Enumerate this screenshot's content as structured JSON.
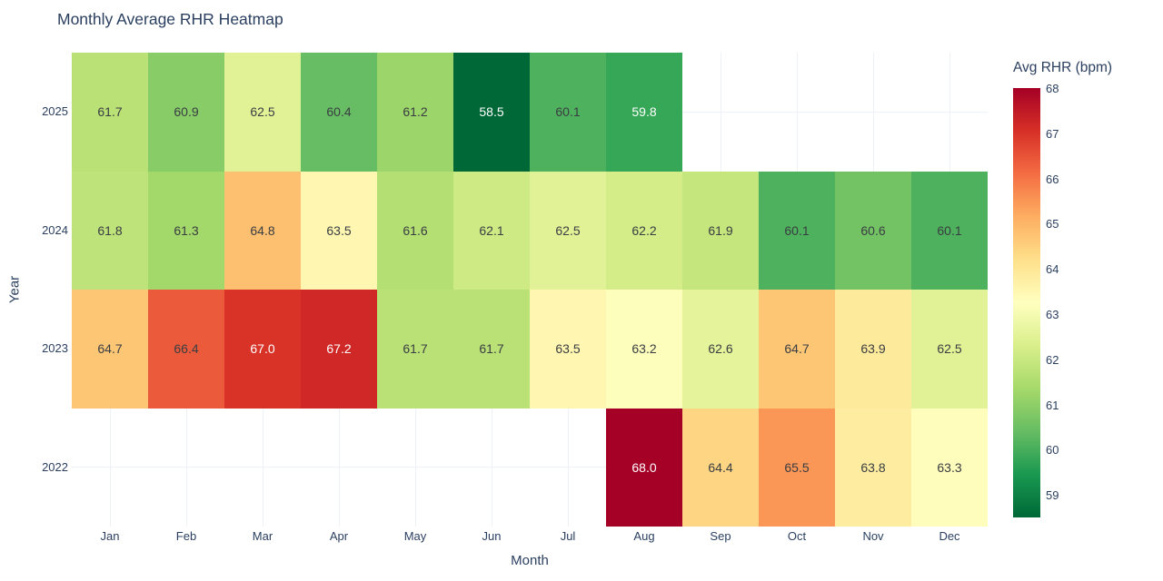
{
  "figure": {
    "title": "Monthly Average RHR Heatmap"
  },
  "chart_data": {
    "type": "heatmap",
    "title": "Monthly Average RHR Heatmap",
    "xlabel": "Month",
    "ylabel": "Year",
    "x_categories": [
      "Jan",
      "Feb",
      "Mar",
      "Apr",
      "May",
      "Jun",
      "Jul",
      "Aug",
      "Sep",
      "Oct",
      "Nov",
      "Dec"
    ],
    "y_categories": [
      "2025",
      "2024",
      "2023",
      "2022"
    ],
    "z": [
      [
        61.7,
        60.9,
        62.5,
        60.4,
        61.2,
        58.5,
        60.1,
        59.8,
        null,
        null,
        null,
        null
      ],
      [
        61.8,
        61.3,
        64.8,
        63.5,
        61.6,
        62.1,
        62.5,
        62.2,
        61.9,
        60.1,
        60.6,
        60.1
      ],
      [
        64.7,
        66.4,
        67.0,
        67.2,
        61.7,
        61.7,
        63.5,
        63.2,
        62.6,
        64.7,
        63.9,
        62.5
      ],
      [
        null,
        null,
        null,
        null,
        null,
        null,
        null,
        68.0,
        64.4,
        65.5,
        63.8,
        63.3
      ]
    ],
    "zmin": 58.5,
    "zmax": 68,
    "value_decimals": 1,
    "grid": true,
    "colorbar": {
      "title": "Avg RHR (bpm)",
      "ticks": [
        68,
        67,
        66,
        65,
        64,
        63,
        62,
        61,
        60,
        59
      ],
      "position": "right"
    },
    "colorscale_name": "RdYlGn reversed (low=green, high=red)",
    "colorscale": [
      "#006837",
      "#1a9850",
      "#66bd63",
      "#a6d96a",
      "#d9ef8b",
      "#ffffbf",
      "#fee08b",
      "#fdae61",
      "#f46d43",
      "#d73027",
      "#a50026"
    ]
  },
  "colors": {
    "background": "#ffffff",
    "title_text": "#2a3f5f",
    "axis_text": "#2a3f5f",
    "cell_text_dark": "#3a3d42",
    "cell_text_light": "#ffffff",
    "gridline": "#edf2f8"
  }
}
